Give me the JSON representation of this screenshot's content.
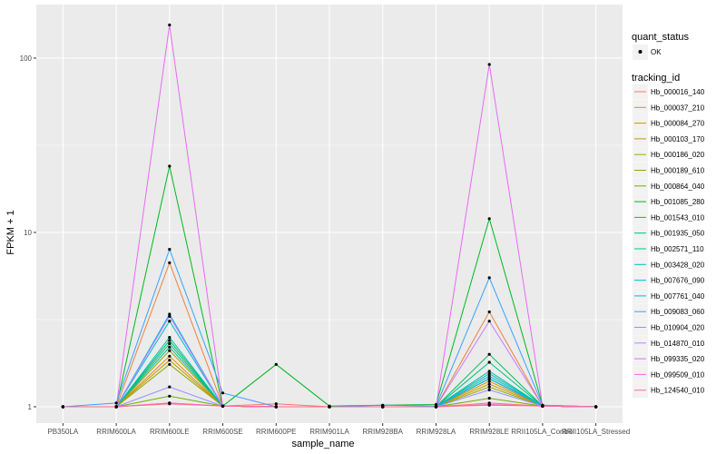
{
  "chart_data": {
    "type": "line",
    "xlabel": "sample_name",
    "ylabel": "FPKM + 1",
    "yscale": "log10",
    "ylim": [
      0.88,
      200
    ],
    "yticks": [
      1,
      10,
      100
    ],
    "ytick_labels": [
      "1",
      "10",
      "100"
    ],
    "grid": true,
    "legend_position": "right",
    "categories": [
      "PB350LA",
      "RRIM600LA",
      "RRIM600LE",
      "RRIM600SE",
      "RRIM600PE",
      "RRIM901LA",
      "RRIM928BA",
      "RRIM928LA",
      "RRIM928LE",
      "RRII105LA_Control",
      "RRII105LA_Stressed"
    ],
    "legend_quant_status": {
      "title": "quant_status",
      "entries": [
        "OK"
      ]
    },
    "legend_tracking": {
      "title": "tracking_id"
    },
    "series": [
      {
        "name": "Hb_000016_140",
        "color": "#F8766D",
        "values": [
          1.0,
          1.0,
          1.05,
          1.01,
          1.04,
          1.0,
          1.0,
          1.0,
          1.05,
          1.01,
          1.0
        ]
      },
      {
        "name": "Hb_000037_210",
        "color": "#EC8239",
        "values": [
          1.0,
          1.0,
          6.7,
          1.01,
          1.0,
          1.0,
          1.0,
          1.0,
          3.5,
          1.01,
          1.0
        ]
      },
      {
        "name": "Hb_000084_270",
        "color": "#DB8E00",
        "values": [
          1.0,
          1.0,
          1.95,
          1.01,
          1.0,
          1.0,
          1.0,
          1.0,
          1.4,
          1.01,
          1.0
        ]
      },
      {
        "name": "Hb_000103_170",
        "color": "#C79800",
        "values": [
          1.0,
          1.0,
          1.85,
          1.01,
          1.0,
          1.0,
          1.0,
          1.0,
          1.35,
          1.01,
          1.0
        ]
      },
      {
        "name": "Hb_000186_020",
        "color": "#AFA100",
        "values": [
          1.0,
          1.0,
          2.1,
          1.01,
          1.0,
          1.0,
          1.0,
          1.0,
          1.45,
          1.01,
          1.0
        ]
      },
      {
        "name": "Hb_000189_610",
        "color": "#93AA00",
        "values": [
          1.0,
          1.0,
          1.75,
          1.01,
          1.0,
          1.0,
          1.0,
          1.0,
          1.3,
          1.01,
          1.0
        ]
      },
      {
        "name": "Hb_000864_040",
        "color": "#6BB100",
        "values": [
          1.0,
          1.0,
          1.15,
          1.01,
          1.0,
          1.0,
          1.0,
          1.0,
          1.12,
          1.01,
          1.0
        ]
      },
      {
        "name": "Hb_001085_280",
        "color": "#00B81F",
        "values": [
          1.0,
          1.0,
          24.0,
          1.01,
          1.75,
          1.01,
          1.02,
          1.03,
          12.0,
          1.02,
          1.0
        ]
      },
      {
        "name": "Hb_001543_010",
        "color": "#00BC59",
        "values": [
          1.0,
          1.0,
          2.4,
          1.01,
          1.0,
          1.0,
          1.0,
          1.0,
          2.0,
          1.01,
          1.0
        ]
      },
      {
        "name": "Hb_001935_050",
        "color": "#00BF7D",
        "values": [
          1.0,
          1.0,
          2.3,
          1.01,
          1.0,
          1.0,
          1.0,
          1.0,
          1.8,
          1.01,
          1.0
        ]
      },
      {
        "name": "Hb_002571_110",
        "color": "#00C09C",
        "values": [
          1.0,
          1.0,
          2.2,
          1.01,
          1.0,
          1.0,
          1.0,
          1.0,
          1.6,
          1.01,
          1.0
        ]
      },
      {
        "name": "Hb_003428_020",
        "color": "#00BFB8",
        "values": [
          1.0,
          1.0,
          2.5,
          1.01,
          1.0,
          1.0,
          1.0,
          1.0,
          1.55,
          1.01,
          1.0
        ]
      },
      {
        "name": "Hb_007676_090",
        "color": "#00BCD1",
        "values": [
          1.0,
          1.0,
          3.1,
          1.01,
          1.0,
          1.0,
          1.0,
          1.0,
          1.5,
          1.01,
          1.0
        ]
      },
      {
        "name": "Hb_007761_040",
        "color": "#00B5E6",
        "values": [
          1.0,
          1.0,
          3.4,
          1.01,
          1.0,
          1.0,
          1.0,
          1.0,
          1.45,
          1.01,
          1.0
        ]
      },
      {
        "name": "Hb_009083_060",
        "color": "#35A2FF",
        "values": [
          1.0,
          1.05,
          8.0,
          1.2,
          1.0,
          1.0,
          1.02,
          1.01,
          5.5,
          1.02,
          1.0
        ]
      },
      {
        "name": "Hb_010904_020",
        "color": "#9590FF",
        "values": [
          1.0,
          1.0,
          1.3,
          1.01,
          1.0,
          1.0,
          1.0,
          1.0,
          1.25,
          1.01,
          1.0
        ]
      },
      {
        "name": "Hb_014870_010",
        "color": "#C77CFF",
        "values": [
          1.0,
          1.0,
          3.3,
          1.01,
          1.0,
          1.0,
          1.0,
          1.0,
          3.1,
          1.01,
          1.0
        ]
      },
      {
        "name": "Hb_099335_020",
        "color": "#E76BF3",
        "values": [
          1.0,
          1.0,
          155.0,
          1.01,
          1.0,
          1.0,
          1.0,
          1.0,
          92.0,
          1.01,
          1.0
        ]
      },
      {
        "name": "Hb_099509_010",
        "color": "#FA62DB",
        "values": [
          1.0,
          1.0,
          1.05,
          1.01,
          1.0,
          1.0,
          1.0,
          1.0,
          1.03,
          1.01,
          1.0
        ]
      },
      {
        "name": "Hb_124540_010",
        "color": "#FF6C91",
        "values": [
          1.0,
          1.0,
          1.04,
          1.01,
          1.0,
          1.0,
          1.0,
          1.0,
          1.02,
          1.01,
          1.0
        ]
      }
    ]
  }
}
